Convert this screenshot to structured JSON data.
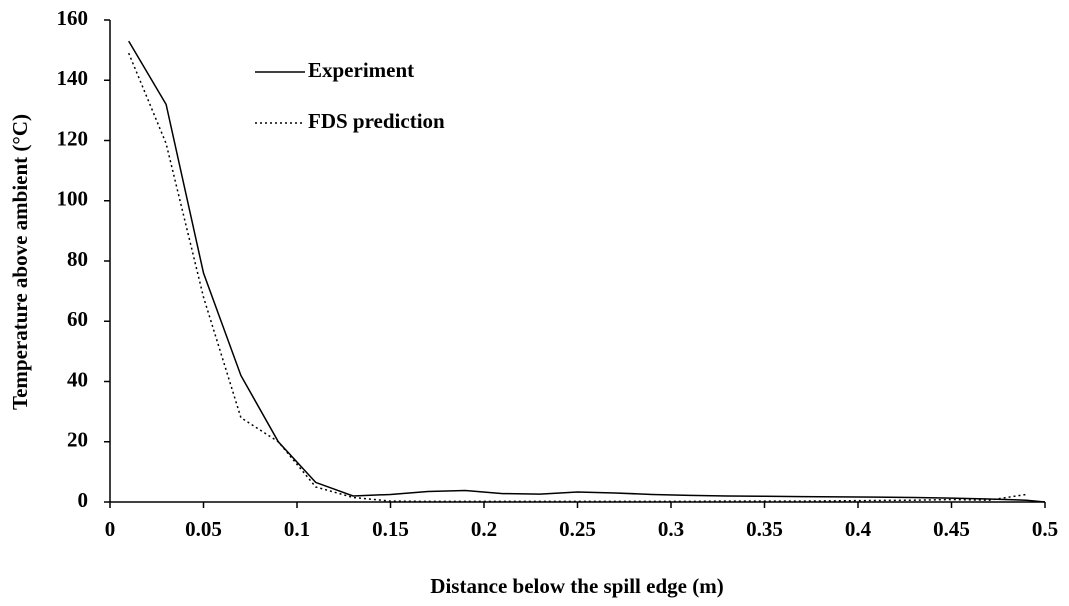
{
  "chart_data": {
    "type": "line",
    "x_label": "Distance below the spill edge (m)",
    "y_label": "Temperature above ambient (°C)",
    "series": [
      {
        "name": "Experiment",
        "color": "#000000",
        "dash": "solid",
        "x": [
          0.01,
          0.03,
          0.05,
          0.07,
          0.09,
          0.11,
          0.13,
          0.15,
          0.17,
          0.19,
          0.21,
          0.23,
          0.25,
          0.27,
          0.29,
          0.31,
          0.33,
          0.35,
          0.37,
          0.39,
          0.41,
          0.43,
          0.45,
          0.47,
          0.49,
          0.5
        ],
        "values": [
          153,
          132,
          76,
          42,
          20,
          6.5,
          2,
          2.5,
          3.5,
          3.8,
          2.8,
          2.6,
          3.3,
          3,
          2.5,
          2.2,
          2,
          1.9,
          1.8,
          1.7,
          1.6,
          1.5,
          1.3,
          1,
          0.6,
          0
        ]
      },
      {
        "name": "FDS prediction",
        "color": "#000000",
        "dash": "dotted",
        "x": [
          0.01,
          0.03,
          0.05,
          0.07,
          0.09,
          0.11,
          0.13,
          0.15,
          0.17,
          0.19,
          0.21,
          0.23,
          0.25,
          0.27,
          0.29,
          0.31,
          0.33,
          0.35,
          0.37,
          0.39,
          0.41,
          0.43,
          0.45,
          0.47,
          0.49
        ],
        "values": [
          149,
          119,
          68,
          28,
          20,
          5,
          1.5,
          0.3,
          0.2,
          0.2,
          0.2,
          0.2,
          0.2,
          0.2,
          0.2,
          0.2,
          0.3,
          0.3,
          0.3,
          0.4,
          0.5,
          0.6,
          0.8,
          0.6,
          2.5
        ]
      }
    ],
    "xlim": [
      0,
      0.5
    ],
    "xticks": [
      0,
      0.05,
      0.1,
      0.15,
      0.2,
      0.25,
      0.3,
      0.35,
      0.4,
      0.45,
      0.5
    ],
    "ylim": [
      0,
      160
    ],
    "yticks": [
      0,
      20,
      40,
      60,
      80,
      100,
      120,
      140,
      160
    ],
    "grid": false,
    "legend": "upper-left"
  }
}
